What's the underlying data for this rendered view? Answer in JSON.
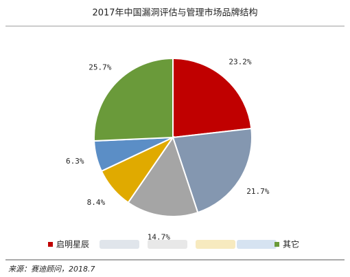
{
  "chart_data": {
    "type": "pie",
    "title": "2017年中国漏洞评估与管理市场品牌结构",
    "categories": [
      "启明星辰",
      null,
      null,
      null,
      null,
      "其它"
    ],
    "values": [
      23.2,
      21.7,
      14.7,
      8.4,
      6.3,
      25.7
    ],
    "value_labels": [
      "23.2%",
      "21.7%",
      "14.7%",
      "8.4%",
      "6.3%",
      "25.7%"
    ],
    "colors": [
      "#c00000",
      "#8497b0",
      "#a5a5a5",
      "#e0aa00",
      "#5b8ec6",
      "#6a9a3a"
    ],
    "source": "来源：赛迪顾问，2018.7"
  }
}
